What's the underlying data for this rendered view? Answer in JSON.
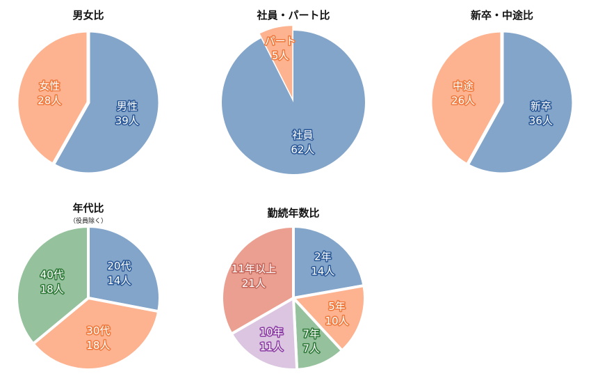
{
  "colors": {
    "blue": "#84a5ca",
    "salmon": "#fdb290",
    "green": "#95c29d",
    "lavender": "#dbc5e1",
    "rose": "#eb9f91",
    "outline_blue": "#2d5b9a",
    "outline_orange": "#f07a3d",
    "outline_green": "#2f7a39",
    "outline_purple": "#8e3fa6",
    "outline_rose": "#c86a5e"
  },
  "chart_data": [
    {
      "type": "pie",
      "title": "男女比",
      "subtitle": "",
      "slices": [
        {
          "label": "男性",
          "value": 39,
          "value_text": "39人",
          "color": "blue",
          "outline": "outline_blue"
        },
        {
          "label": "女性",
          "value": 28,
          "value_text": "28人",
          "color": "salmon",
          "outline": "outline_orange"
        }
      ]
    },
    {
      "type": "pie",
      "title": "社員・パート比",
      "subtitle": "",
      "slices": [
        {
          "label": "社員",
          "value": 62,
          "value_text": "62人",
          "color": "blue",
          "outline": "outline_blue"
        },
        {
          "label": "パート",
          "value": 5,
          "value_text": "5人",
          "color": "salmon",
          "outline": "outline_orange"
        }
      ]
    },
    {
      "type": "pie",
      "title": "新卒・中途比",
      "subtitle": "",
      "slices": [
        {
          "label": "新卒",
          "value": 36,
          "value_text": "36人",
          "color": "blue",
          "outline": "outline_blue"
        },
        {
          "label": "中途",
          "value": 26,
          "value_text": "26人",
          "color": "salmon",
          "outline": "outline_orange"
        }
      ]
    },
    {
      "type": "pie",
      "title": "年代比",
      "subtitle": "（役員除く）",
      "slices": [
        {
          "label": "20代",
          "value": 14,
          "value_text": "14人",
          "color": "blue",
          "outline": "outline_blue"
        },
        {
          "label": "30代",
          "value": 18,
          "value_text": "18人",
          "color": "salmon",
          "outline": "outline_orange"
        },
        {
          "label": "40代",
          "value": 18,
          "value_text": "18人",
          "color": "green",
          "outline": "outline_green"
        }
      ]
    },
    {
      "type": "pie",
      "title": "勤続年数比",
      "subtitle": "",
      "slices": [
        {
          "label": "2年",
          "value": 14,
          "value_text": "14人",
          "color": "blue",
          "outline": "outline_blue"
        },
        {
          "label": "5年",
          "value": 10,
          "value_text": "10人",
          "color": "salmon",
          "outline": "outline_orange"
        },
        {
          "label": "7年",
          "value": 7,
          "value_text": "7人",
          "color": "green",
          "outline": "outline_green"
        },
        {
          "label": "10年",
          "value": 11,
          "value_text": "11人",
          "color": "lavender",
          "outline": "outline_purple"
        },
        {
          "label": "11年以上",
          "value": 21,
          "value_text": "21人",
          "color": "rose",
          "outline": "outline_rose"
        }
      ]
    }
  ]
}
